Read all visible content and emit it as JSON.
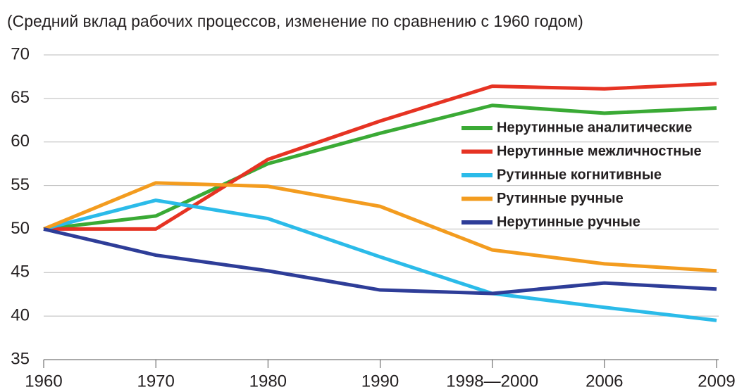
{
  "chart_data": {
    "type": "line",
    "title": "(Средний вклад рабочих процессов, изменение по сравнению с 1960 годом)",
    "categories": [
      "1960",
      "1970",
      "1980",
      "1990",
      "1998—2000",
      "2006",
      "2009"
    ],
    "series": [
      {
        "name": "Нерутинные аналитические",
        "color": "#3aaa35",
        "values": [
          50,
          51.5,
          57.5,
          61,
          64.2,
          63.3,
          63.9
        ]
      },
      {
        "name": "Нерутинные межличностные",
        "color": "#e63323",
        "values": [
          50,
          50,
          58,
          62.4,
          66.4,
          66.1,
          66.7
        ]
      },
      {
        "name": "Рутинные когнитивные",
        "color": "#2bbbe9",
        "values": [
          50,
          53.3,
          51.2,
          46.8,
          42.6,
          41,
          39.5
        ]
      },
      {
        "name": "Рутинные ручные",
        "color": "#f39c1f",
        "values": [
          50,
          55.3,
          54.9,
          52.6,
          47.6,
          46,
          45.2
        ]
      },
      {
        "name": "Нерутинные ручные",
        "color": "#2e3d98",
        "values": [
          50,
          47,
          45.2,
          43,
          42.6,
          43.8,
          43.1
        ]
      }
    ],
    "ylim": [
      35,
      70
    ],
    "yticks": [
      35,
      40,
      45,
      50,
      55,
      60,
      65,
      70
    ],
    "grid": true,
    "legend": "center right"
  }
}
